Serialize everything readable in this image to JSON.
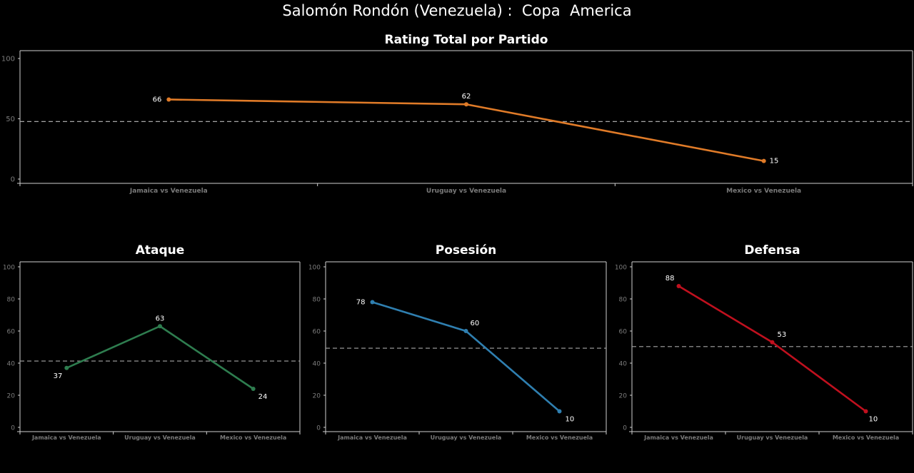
{
  "page_title": "Salomón Rondón (Venezuela) :  Copa  America",
  "colors": {
    "background": "#000000",
    "axis": "#cfcfcf",
    "tick_label": "#7c7c7c",
    "category_label": "#7a7a7a",
    "mean_line": "#a6a6a6",
    "value_label": "#ffffff",
    "title": "#ffffff"
  },
  "chart_data": [
    {
      "id": "total",
      "type": "line",
      "title": "Rating Total por Partido",
      "categories": [
        "Jamaica vs Venezuela",
        "Uruguay vs Venezuela",
        "Mexico vs Venezuela"
      ],
      "values": [
        66,
        62,
        15
      ],
      "ylim": [
        0,
        100
      ],
      "yticks": [
        0,
        50,
        100
      ],
      "mean_line": 47.7,
      "color": "#e07b28",
      "xlabel": "",
      "ylabel": ""
    },
    {
      "id": "ataque",
      "type": "line",
      "title": "Ataque",
      "categories": [
        "Jamaica vs Venezuela",
        "Uruguay vs Venezuela",
        "Mexico vs Venezuela"
      ],
      "values": [
        37,
        63,
        24
      ],
      "ylim": [
        0,
        100
      ],
      "yticks": [
        0,
        20,
        40,
        60,
        80,
        100
      ],
      "mean_line": 41.3,
      "color": "#2e7d4f",
      "xlabel": "",
      "ylabel": ""
    },
    {
      "id": "posesion",
      "type": "line",
      "title": "Posesión",
      "categories": [
        "Jamaica vs Venezuela",
        "Uruguay vs Venezuela",
        "Mexico vs Venezuela"
      ],
      "values": [
        78,
        60,
        10
      ],
      "ylim": [
        0,
        100
      ],
      "yticks": [
        0,
        20,
        40,
        60,
        80,
        100
      ],
      "mean_line": 49.3,
      "color": "#2f7fb0",
      "xlabel": "",
      "ylabel": ""
    },
    {
      "id": "defensa",
      "type": "line",
      "title": "Defensa",
      "categories": [
        "Jamaica vs Venezuela",
        "Uruguay vs Venezuela",
        "Mexico vs Venezuela"
      ],
      "values": [
        88,
        53,
        10
      ],
      "ylim": [
        0,
        100
      ],
      "yticks": [
        0,
        20,
        40,
        60,
        80,
        100
      ],
      "mean_line": 50.3,
      "color": "#c0101e",
      "xlabel": "",
      "ylabel": ""
    }
  ]
}
